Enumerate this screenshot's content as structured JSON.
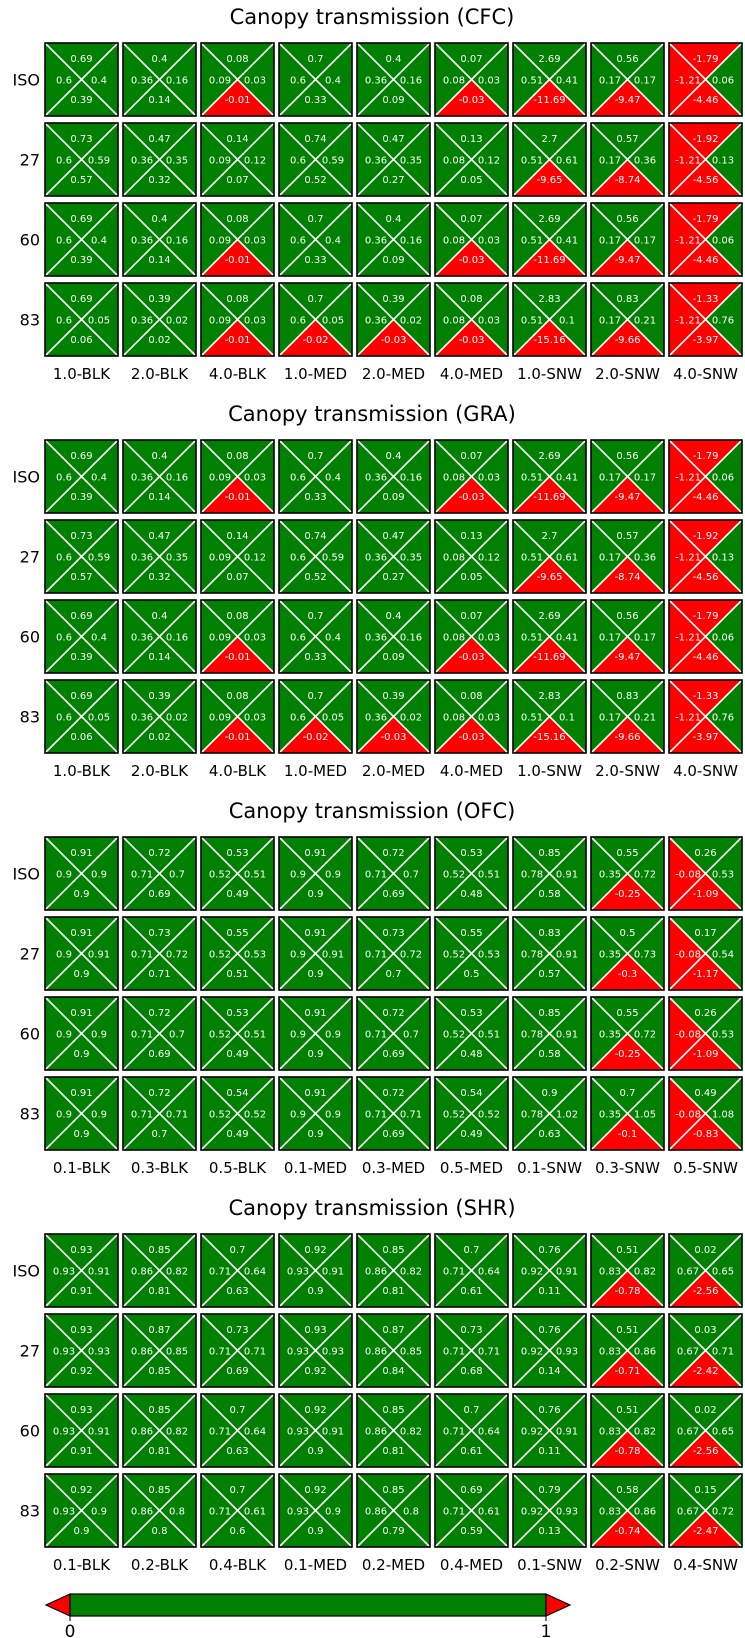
{
  "colors": {
    "positive": "#008000",
    "negative": "#ff0000",
    "cell_border": "#000000",
    "diagonal": "#ffffff",
    "value_text": "#ffffff"
  },
  "chart_data": [
    {
      "type": "heatmap",
      "title": "Canopy transmission (CFC)",
      "rows": [
        "ISO",
        "27",
        "60",
        "83"
      ],
      "columns": [
        "1.0-BLK",
        "2.0-BLK",
        "4.0-BLK",
        "1.0-MED",
        "2.0-MED",
        "4.0-MED",
        "1.0-SNW",
        "2.0-SNW",
        "4.0-SNW"
      ],
      "cell_order": [
        "top",
        "left",
        "right",
        "bottom"
      ],
      "cells": [
        [
          [
            0.69,
            0.6,
            0.4,
            0.39
          ],
          [
            0.4,
            0.36,
            0.16,
            0.14
          ],
          [
            0.08,
            0.09,
            0.03,
            -0.01
          ],
          [
            0.7,
            0.6,
            0.4,
            0.33
          ],
          [
            0.4,
            0.36,
            0.16,
            0.09
          ],
          [
            0.07,
            0.08,
            0.03,
            -0.03
          ],
          [
            2.69,
            0.51,
            0.41,
            -11.69
          ],
          [
            0.56,
            0.17,
            0.17,
            -9.47
          ],
          [
            -1.79,
            -1.21,
            0.06,
            -4.46
          ]
        ],
        [
          [
            0.73,
            0.6,
            0.59,
            0.57
          ],
          [
            0.47,
            0.36,
            0.35,
            0.32
          ],
          [
            0.14,
            0.09,
            0.12,
            0.07
          ],
          [
            0.74,
            0.6,
            0.59,
            0.52
          ],
          [
            0.47,
            0.36,
            0.35,
            0.27
          ],
          [
            0.13,
            0.08,
            0.12,
            0.05
          ],
          [
            2.7,
            0.51,
            0.61,
            -9.65
          ],
          [
            0.57,
            0.17,
            0.36,
            -8.74
          ],
          [
            -1.92,
            -1.21,
            0.13,
            -4.56
          ]
        ],
        [
          [
            0.69,
            0.6,
            0.4,
            0.39
          ],
          [
            0.4,
            0.36,
            0.16,
            0.14
          ],
          [
            0.08,
            0.09,
            0.03,
            -0.01
          ],
          [
            0.7,
            0.6,
            0.4,
            0.33
          ],
          [
            0.4,
            0.36,
            0.16,
            0.09
          ],
          [
            0.07,
            0.08,
            0.03,
            -0.03
          ],
          [
            2.69,
            0.51,
            0.41,
            -11.69
          ],
          [
            0.56,
            0.17,
            0.17,
            -9.47
          ],
          [
            -1.79,
            -1.21,
            0.06,
            -4.46
          ]
        ],
        [
          [
            0.69,
            0.6,
            0.05,
            0.06
          ],
          [
            0.39,
            0.36,
            0.02,
            0.02
          ],
          [
            0.08,
            0.09,
            0.03,
            -0.01
          ],
          [
            0.7,
            0.6,
            0.05,
            -0.02
          ],
          [
            0.39,
            0.36,
            0.02,
            -0.03
          ],
          [
            0.08,
            0.08,
            0.03,
            -0.03
          ],
          [
            2.83,
            0.51,
            0.1,
            -15.16
          ],
          [
            0.83,
            0.17,
            0.21,
            -9.66
          ],
          [
            -1.33,
            -1.21,
            0.76,
            -3.97
          ]
        ]
      ]
    },
    {
      "type": "heatmap",
      "title": "Canopy transmission (GRA)",
      "rows": [
        "ISO",
        "27",
        "60",
        "83"
      ],
      "columns": [
        "1.0-BLK",
        "2.0-BLK",
        "4.0-BLK",
        "1.0-MED",
        "2.0-MED",
        "4.0-MED",
        "1.0-SNW",
        "2.0-SNW",
        "4.0-SNW"
      ],
      "cell_order": [
        "top",
        "left",
        "right",
        "bottom"
      ],
      "cells": [
        [
          [
            0.69,
            0.6,
            0.4,
            0.39
          ],
          [
            0.4,
            0.36,
            0.16,
            0.14
          ],
          [
            0.08,
            0.09,
            0.03,
            -0.01
          ],
          [
            0.7,
            0.6,
            0.4,
            0.33
          ],
          [
            0.4,
            0.36,
            0.16,
            0.09
          ],
          [
            0.07,
            0.08,
            0.03,
            -0.03
          ],
          [
            2.69,
            0.51,
            0.41,
            -11.69
          ],
          [
            0.56,
            0.17,
            0.17,
            -9.47
          ],
          [
            -1.79,
            -1.21,
            0.06,
            -4.46
          ]
        ],
        [
          [
            0.73,
            0.6,
            0.59,
            0.57
          ],
          [
            0.47,
            0.36,
            0.35,
            0.32
          ],
          [
            0.14,
            0.09,
            0.12,
            0.07
          ],
          [
            0.74,
            0.6,
            0.59,
            0.52
          ],
          [
            0.47,
            0.36,
            0.35,
            0.27
          ],
          [
            0.13,
            0.08,
            0.12,
            0.05
          ],
          [
            2.7,
            0.51,
            0.61,
            -9.65
          ],
          [
            0.57,
            0.17,
            0.36,
            -8.74
          ],
          [
            -1.92,
            -1.21,
            0.13,
            -4.56
          ]
        ],
        [
          [
            0.69,
            0.6,
            0.4,
            0.39
          ],
          [
            0.4,
            0.36,
            0.16,
            0.14
          ],
          [
            0.08,
            0.09,
            0.03,
            -0.01
          ],
          [
            0.7,
            0.6,
            0.4,
            0.33
          ],
          [
            0.4,
            0.36,
            0.16,
            0.09
          ],
          [
            0.07,
            0.08,
            0.03,
            -0.03
          ],
          [
            2.69,
            0.51,
            0.41,
            -11.69
          ],
          [
            0.56,
            0.17,
            0.17,
            -9.47
          ],
          [
            -1.79,
            -1.21,
            0.06,
            -4.46
          ]
        ],
        [
          [
            0.69,
            0.6,
            0.05,
            0.06
          ],
          [
            0.39,
            0.36,
            0.02,
            0.02
          ],
          [
            0.08,
            0.09,
            0.03,
            -0.01
          ],
          [
            0.7,
            0.6,
            0.05,
            -0.02
          ],
          [
            0.39,
            0.36,
            0.02,
            -0.03
          ],
          [
            0.08,
            0.08,
            0.03,
            -0.03
          ],
          [
            2.83,
            0.51,
            0.1,
            -15.16
          ],
          [
            0.83,
            0.17,
            0.21,
            -9.66
          ],
          [
            -1.33,
            -1.21,
            0.76,
            -3.97
          ]
        ]
      ]
    },
    {
      "type": "heatmap",
      "title": "Canopy transmission (OFC)",
      "rows": [
        "ISO",
        "27",
        "60",
        "83"
      ],
      "columns": [
        "0.1-BLK",
        "0.3-BLK",
        "0.5-BLK",
        "0.1-MED",
        "0.3-MED",
        "0.5-MED",
        "0.1-SNW",
        "0.3-SNW",
        "0.5-SNW"
      ],
      "cell_order": [
        "top",
        "left",
        "right",
        "bottom"
      ],
      "cells": [
        [
          [
            0.91,
            0.9,
            0.9,
            0.9
          ],
          [
            0.72,
            0.71,
            0.7,
            0.69
          ],
          [
            0.53,
            0.52,
            0.51,
            0.49
          ],
          [
            0.91,
            0.9,
            0.9,
            0.9
          ],
          [
            0.72,
            0.71,
            0.7,
            0.69
          ],
          [
            0.53,
            0.52,
            0.51,
            0.48
          ],
          [
            0.85,
            0.78,
            0.91,
            0.58
          ],
          [
            0.55,
            0.35,
            0.72,
            -0.25
          ],
          [
            0.26,
            -0.08,
            0.53,
            -1.09
          ]
        ],
        [
          [
            0.91,
            0.9,
            0.91,
            0.9
          ],
          [
            0.73,
            0.71,
            0.72,
            0.71
          ],
          [
            0.55,
            0.52,
            0.53,
            0.51
          ],
          [
            0.91,
            0.9,
            0.91,
            0.9
          ],
          [
            0.73,
            0.71,
            0.72,
            0.7
          ],
          [
            0.55,
            0.52,
            0.53,
            0.5
          ],
          [
            0.83,
            0.78,
            0.91,
            0.57
          ],
          [
            0.5,
            0.35,
            0.73,
            -0.3
          ],
          [
            0.17,
            -0.08,
            0.54,
            -1.17
          ]
        ],
        [
          [
            0.91,
            0.9,
            0.9,
            0.9
          ],
          [
            0.72,
            0.71,
            0.7,
            0.69
          ],
          [
            0.53,
            0.52,
            0.51,
            0.49
          ],
          [
            0.91,
            0.9,
            0.9,
            0.9
          ],
          [
            0.72,
            0.71,
            0.7,
            0.69
          ],
          [
            0.53,
            0.52,
            0.51,
            0.48
          ],
          [
            0.85,
            0.78,
            0.91,
            0.58
          ],
          [
            0.55,
            0.35,
            0.72,
            -0.25
          ],
          [
            0.26,
            -0.08,
            0.53,
            -1.09
          ]
        ],
        [
          [
            0.91,
            0.9,
            0.9,
            0.9
          ],
          [
            0.72,
            0.71,
            0.71,
            0.7
          ],
          [
            0.54,
            0.52,
            0.52,
            0.49
          ],
          [
            0.91,
            0.9,
            0.9,
            0.9
          ],
          [
            0.72,
            0.71,
            0.71,
            0.69
          ],
          [
            0.54,
            0.52,
            0.52,
            0.49
          ],
          [
            0.9,
            0.78,
            1.02,
            0.63
          ],
          [
            0.7,
            0.35,
            1.05,
            -0.1
          ],
          [
            0.49,
            -0.08,
            1.08,
            -0.83
          ]
        ]
      ]
    },
    {
      "type": "heatmap",
      "title": "Canopy transmission (SHR)",
      "rows": [
        "ISO",
        "27",
        "60",
        "83"
      ],
      "columns": [
        "0.1-BLK",
        "0.2-BLK",
        "0.4-BLK",
        "0.1-MED",
        "0.2-MED",
        "0.4-MED",
        "0.1-SNW",
        "0.2-SNW",
        "0.4-SNW"
      ],
      "cell_order": [
        "top",
        "left",
        "right",
        "bottom"
      ],
      "cells": [
        [
          [
            0.93,
            0.93,
            0.91,
            0.91
          ],
          [
            0.85,
            0.86,
            0.82,
            0.81
          ],
          [
            0.7,
            0.71,
            0.64,
            0.63
          ],
          [
            0.92,
            0.93,
            0.91,
            0.9
          ],
          [
            0.85,
            0.86,
            0.82,
            0.81
          ],
          [
            0.7,
            0.71,
            0.64,
            0.61
          ],
          [
            0.76,
            0.92,
            0.91,
            0.11
          ],
          [
            0.51,
            0.83,
            0.82,
            -0.78
          ],
          [
            0.02,
            0.67,
            0.65,
            -2.56
          ]
        ],
        [
          [
            0.93,
            0.93,
            0.93,
            0.92
          ],
          [
            0.87,
            0.86,
            0.85,
            0.85
          ],
          [
            0.73,
            0.71,
            0.71,
            0.69
          ],
          [
            0.93,
            0.93,
            0.93,
            0.92
          ],
          [
            0.87,
            0.86,
            0.85,
            0.84
          ],
          [
            0.73,
            0.71,
            0.71,
            0.68
          ],
          [
            0.76,
            0.92,
            0.93,
            0.14
          ],
          [
            0.51,
            0.83,
            0.86,
            -0.71
          ],
          [
            0.03,
            0.67,
            0.71,
            -2.42
          ]
        ],
        [
          [
            0.93,
            0.93,
            0.91,
            0.91
          ],
          [
            0.85,
            0.86,
            0.82,
            0.81
          ],
          [
            0.7,
            0.71,
            0.64,
            0.63
          ],
          [
            0.92,
            0.93,
            0.91,
            0.9
          ],
          [
            0.85,
            0.86,
            0.82,
            0.81
          ],
          [
            0.7,
            0.71,
            0.64,
            0.61
          ],
          [
            0.76,
            0.92,
            0.91,
            0.11
          ],
          [
            0.51,
            0.83,
            0.82,
            -0.78
          ],
          [
            0.02,
            0.67,
            0.65,
            -2.56
          ]
        ],
        [
          [
            0.92,
            0.93,
            0.9,
            0.9
          ],
          [
            0.85,
            0.86,
            0.8,
            0.8
          ],
          [
            0.7,
            0.71,
            0.61,
            0.6
          ],
          [
            0.92,
            0.93,
            0.9,
            0.9
          ],
          [
            0.85,
            0.86,
            0.8,
            0.79
          ],
          [
            0.69,
            0.71,
            0.61,
            0.59
          ],
          [
            0.79,
            0.92,
            0.93,
            0.13
          ],
          [
            0.58,
            0.83,
            0.86,
            -0.74
          ],
          [
            0.15,
            0.67,
            0.72,
            -2.47
          ]
        ]
      ]
    }
  ],
  "colorbar": {
    "min": 0,
    "max": 1,
    "min_label": "0",
    "max_label": "1",
    "extend": "both"
  }
}
